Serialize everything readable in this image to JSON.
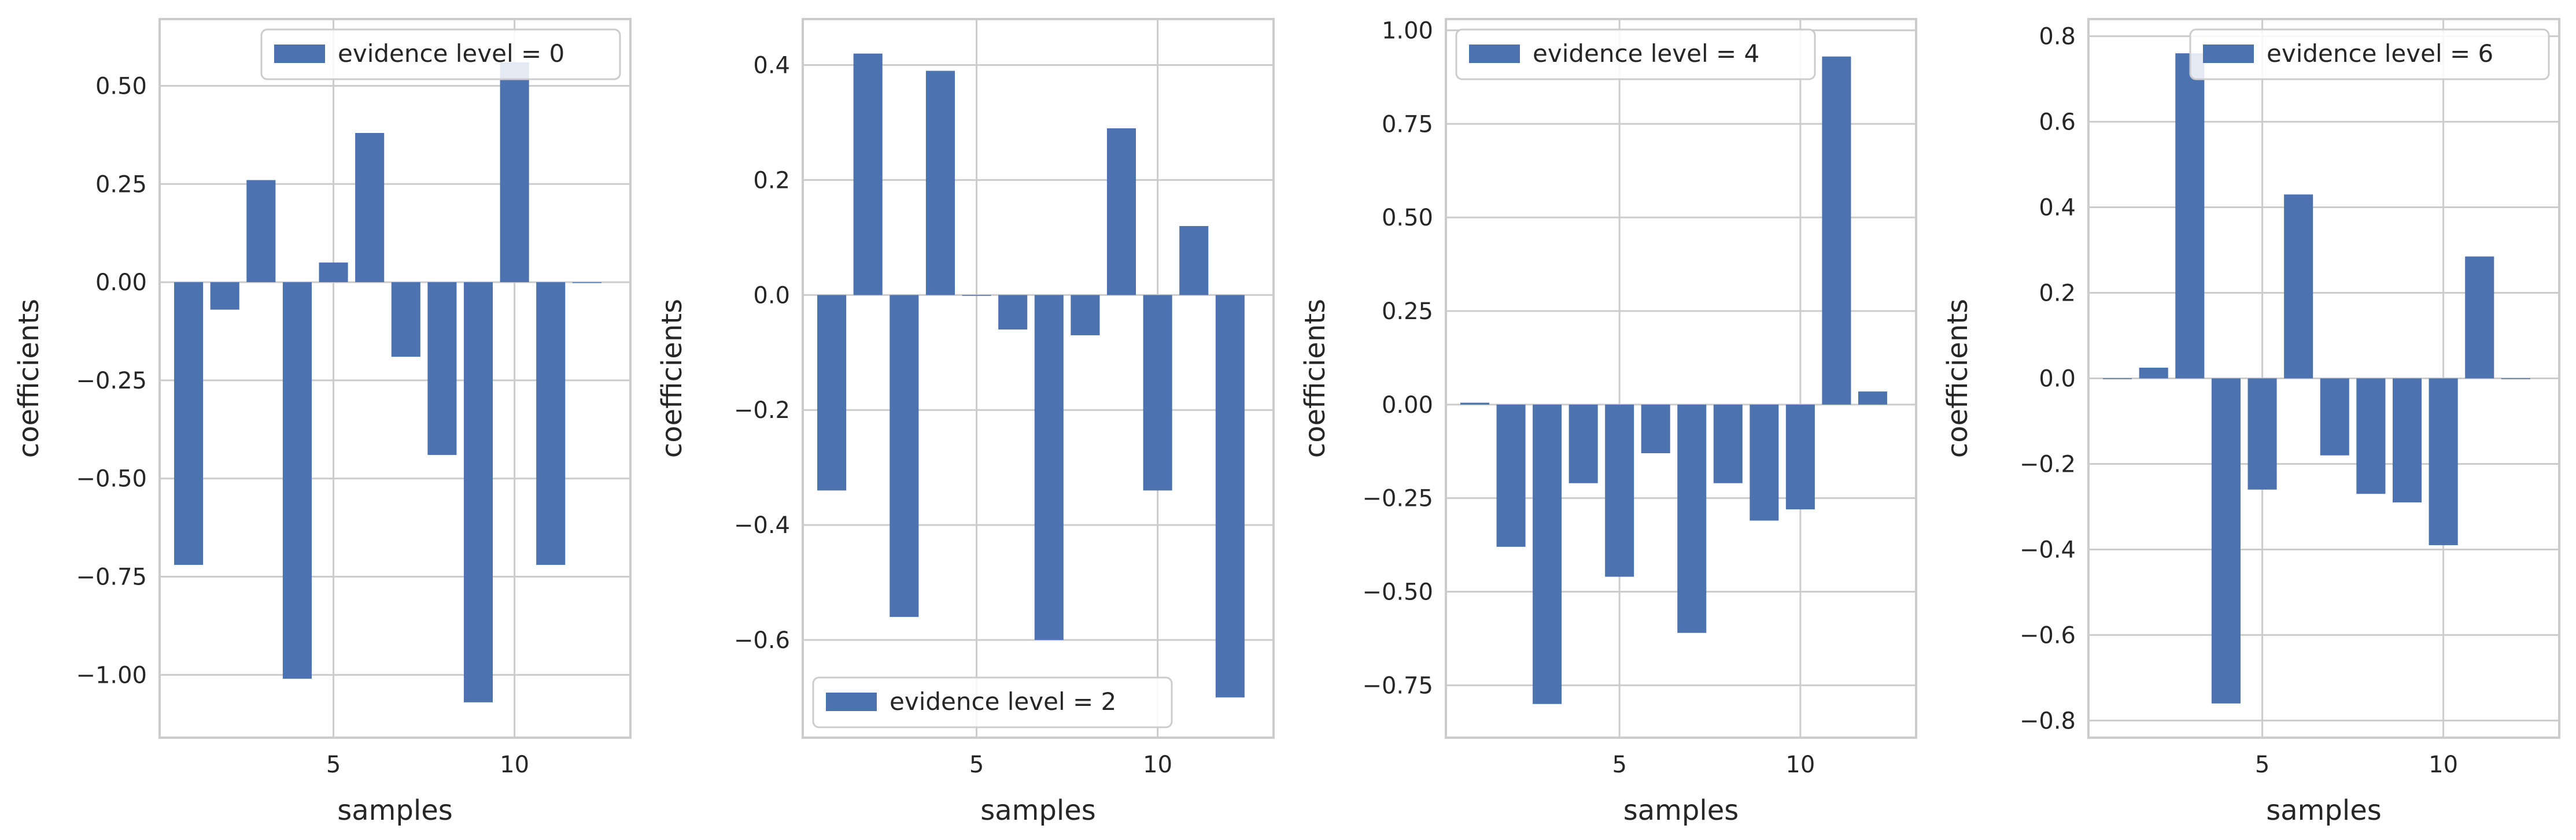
{
  "colors": {
    "bar": "#4c72b0",
    "grid": "#cccccc",
    "frame": "#cccccc",
    "background": "#ffffff",
    "text": "#262626"
  },
  "chart_data": [
    {
      "type": "bar",
      "xlabel": "samples",
      "ylabel": "coefficients",
      "legend": "evidence level = 0",
      "legend_position": "upper right",
      "grid": true,
      "xlim": [
        -0.8,
        12.2
      ],
      "ylim": [
        -1.16,
        0.67
      ],
      "xticks": [
        {
          "value": 4,
          "label": "5"
        },
        {
          "value": 9,
          "label": "10"
        }
      ],
      "yticks": [
        {
          "value": 0.5,
          "label": "0.50"
        },
        {
          "value": 0.25,
          "label": "0.25"
        },
        {
          "value": 0.0,
          "label": "0.00"
        },
        {
          "value": -0.25,
          "label": "−0.25"
        },
        {
          "value": -0.5,
          "label": "−0.50"
        },
        {
          "value": -0.75,
          "label": "−0.75"
        },
        {
          "value": -1.0,
          "label": "−1.00"
        }
      ],
      "x": [
        0,
        1,
        2,
        3,
        4,
        5,
        6,
        7,
        8,
        9,
        10,
        11
      ],
      "values": [
        -0.72,
        -0.07,
        0.26,
        -1.01,
        0.05,
        0.38,
        -0.19,
        -0.44,
        -1.07,
        0.56,
        -0.72,
        0.0
      ]
    },
    {
      "type": "bar",
      "xlabel": "samples",
      "ylabel": "coefficients",
      "legend": "evidence level = 2",
      "legend_position": "lower left",
      "grid": true,
      "xlim": [
        -0.8,
        12.2
      ],
      "ylim": [
        -0.77,
        0.48
      ],
      "xticks": [
        {
          "value": 4,
          "label": "5"
        },
        {
          "value": 9,
          "label": "10"
        }
      ],
      "yticks": [
        {
          "value": 0.4,
          "label": "0.4"
        },
        {
          "value": 0.2,
          "label": "0.2"
        },
        {
          "value": 0.0,
          "label": "0.0"
        },
        {
          "value": -0.2,
          "label": "−0.2"
        },
        {
          "value": -0.4,
          "label": "−0.4"
        },
        {
          "value": -0.6,
          "label": "−0.6"
        }
      ],
      "x": [
        0,
        1,
        2,
        3,
        4,
        5,
        6,
        7,
        8,
        9,
        10,
        11
      ],
      "values": [
        -0.34,
        0.42,
        -0.56,
        0.39,
        0.0,
        -0.06,
        -0.6,
        -0.07,
        0.29,
        -0.34,
        0.12,
        -0.7
      ]
    },
    {
      "type": "bar",
      "xlabel": "samples",
      "ylabel": "coefficients",
      "legend": "evidence level = 4",
      "legend_position": "upper left",
      "grid": true,
      "xlim": [
        -0.8,
        12.2
      ],
      "ylim": [
        -0.89,
        1.03
      ],
      "xticks": [
        {
          "value": 4,
          "label": "5"
        },
        {
          "value": 9,
          "label": "10"
        }
      ],
      "yticks": [
        {
          "value": 1.0,
          "label": "1.00"
        },
        {
          "value": 0.75,
          "label": "0.75"
        },
        {
          "value": 0.5,
          "label": "0.50"
        },
        {
          "value": 0.25,
          "label": "0.25"
        },
        {
          "value": 0.0,
          "label": "0.00"
        },
        {
          "value": -0.25,
          "label": "−0.25"
        },
        {
          "value": -0.5,
          "label": "−0.50"
        },
        {
          "value": -0.75,
          "label": "−0.75"
        }
      ],
      "x": [
        0,
        1,
        2,
        3,
        4,
        5,
        6,
        7,
        8,
        9,
        10,
        11
      ],
      "values": [
        0.005,
        -0.38,
        -0.8,
        -0.21,
        -0.46,
        -0.13,
        -0.61,
        -0.21,
        -0.31,
        -0.28,
        0.93,
        0.035
      ]
    },
    {
      "type": "bar",
      "xlabel": "samples",
      "ylabel": "coefficients",
      "legend": "evidence level = 6",
      "legend_position": "upper right",
      "grid": true,
      "xlim": [
        -0.8,
        12.2
      ],
      "ylim": [
        -0.84,
        0.84
      ],
      "xticks": [
        {
          "value": 4,
          "label": "5"
        },
        {
          "value": 9,
          "label": "10"
        }
      ],
      "yticks": [
        {
          "value": 0.8,
          "label": "0.8"
        },
        {
          "value": 0.6,
          "label": "0.6"
        },
        {
          "value": 0.4,
          "label": "0.4"
        },
        {
          "value": 0.2,
          "label": "0.2"
        },
        {
          "value": 0.0,
          "label": "0.0"
        },
        {
          "value": -0.2,
          "label": "−0.2"
        },
        {
          "value": -0.4,
          "label": "−0.4"
        },
        {
          "value": -0.6,
          "label": "−0.6"
        },
        {
          "value": -0.8,
          "label": "−0.8"
        }
      ],
      "x": [
        0,
        1,
        2,
        3,
        4,
        5,
        6,
        7,
        8,
        9,
        10,
        11
      ],
      "values": [
        0.0,
        0.025,
        0.76,
        -0.76,
        -0.26,
        0.43,
        -0.18,
        -0.27,
        -0.29,
        -0.39,
        0.285,
        0.0
      ]
    }
  ]
}
